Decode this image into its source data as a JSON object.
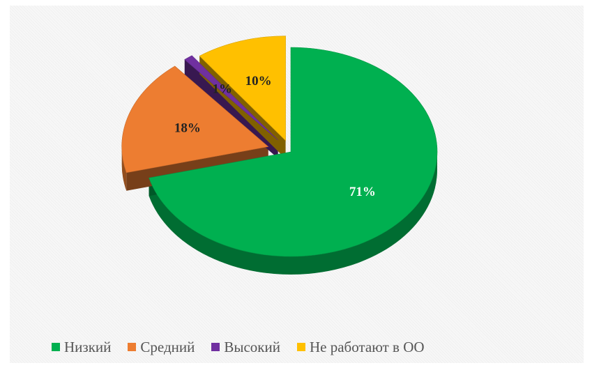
{
  "chart_data": {
    "type": "pie",
    "categories": [
      "Низкий",
      "Средний",
      "Высокий",
      "Не работают в ОО"
    ],
    "values": [
      71,
      18,
      1,
      10
    ],
    "data_labels": [
      "71%",
      "18%",
      "1%",
      "10%"
    ],
    "legend_position": "bottom",
    "style": "3d-exploded",
    "colors": [
      "#00b050",
      "#ed7d31",
      "#7030a0",
      "#ffc000"
    ],
    "label_colors": [
      "#ffffff",
      "#222222",
      "#222222",
      "#222222"
    ]
  }
}
